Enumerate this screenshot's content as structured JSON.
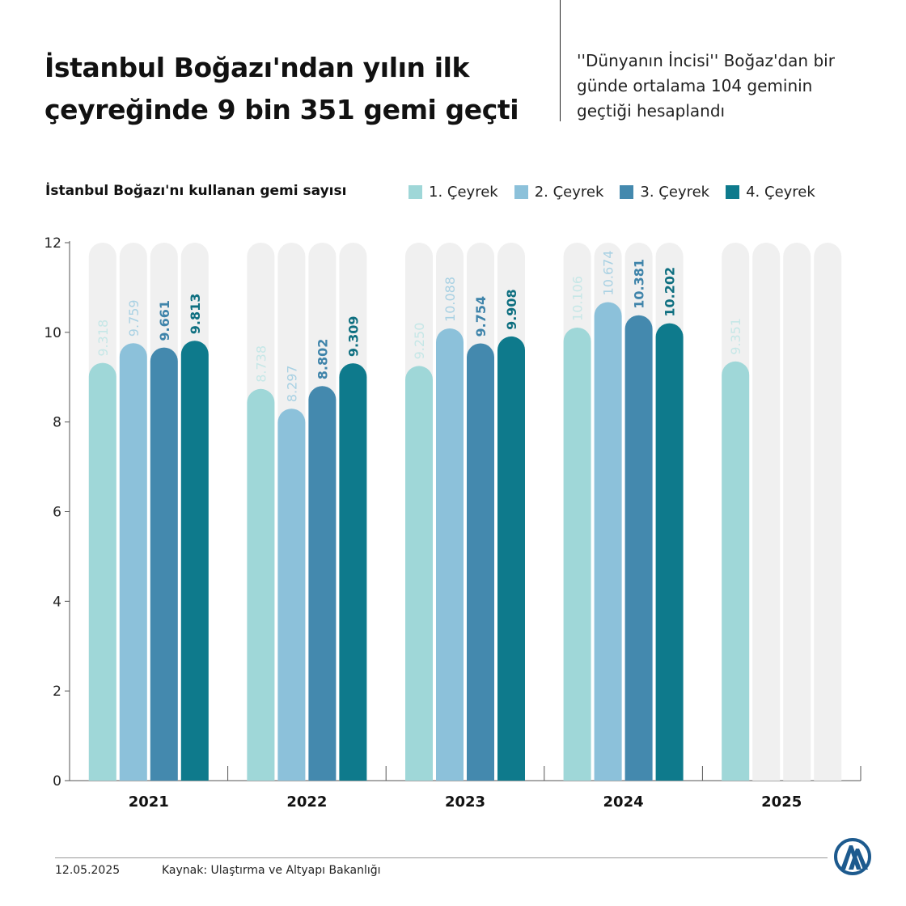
{
  "header": {
    "title": "İstanbul Boğazı'ndan yılın ilk çeyreğinde 9 bin 351 gemi geçti",
    "subtitle": "''Dünyanın İncisi'' Boğaz'dan bir günde ortalama 104 geminin geçtiği hesaplandı"
  },
  "chart_data": {
    "type": "bar",
    "title": "",
    "ylabel": "İstanbul Boğazı'nı kullanan gemi sayısı",
    "xlabel": "",
    "ylim": [
      0,
      12
    ],
    "yticks": [
      0,
      2,
      4,
      6,
      8,
      10,
      12
    ],
    "categories": [
      "2021",
      "2022",
      "2023",
      "2024",
      "2025"
    ],
    "legend_position": "top-right",
    "grid": false,
    "series": [
      {
        "name": "1. Çeyrek",
        "color": "#9fd7d8",
        "label_color": "#c6e7e7",
        "values": [
          9.318,
          8.738,
          9.25,
          10.106,
          9.351
        ],
        "labels": [
          "9.318",
          "8.738",
          "9.250",
          "10.106",
          "9.351"
        ]
      },
      {
        "name": "2. Çeyrek",
        "color": "#8cc1da",
        "label_color": "#a9d1e3",
        "values": [
          9.759,
          8.297,
          10.088,
          10.674,
          null
        ],
        "labels": [
          "9.759",
          "8.297",
          "10.088",
          "10.674",
          ""
        ]
      },
      {
        "name": "3. Çeyrek",
        "color": "#4489ae",
        "label_color": "#3f84aa",
        "values": [
          9.661,
          8.802,
          9.754,
          10.381,
          null
        ],
        "labels": [
          "9.661",
          "8.802",
          "9.754",
          "10.381",
          ""
        ]
      },
      {
        "name": "4. Çeyrek",
        "color": "#0e7a8c",
        "label_color": "#0e6f80",
        "values": [
          9.813,
          9.309,
          9.908,
          10.202,
          null
        ],
        "labels": [
          "9.813",
          "9.309",
          "9.908",
          "10.202",
          ""
        ]
      }
    ]
  },
  "footer": {
    "date": "12.05.2025",
    "source": "Kaynak: Ulaştırma ve Altyapı Bakanlığı"
  },
  "logo": {
    "icon": "aa-logo-icon",
    "color": "#1d5a8e",
    "text": "AA"
  },
  "colors": {
    "background_bar": "#f0f0f0",
    "axis": "#555555"
  }
}
